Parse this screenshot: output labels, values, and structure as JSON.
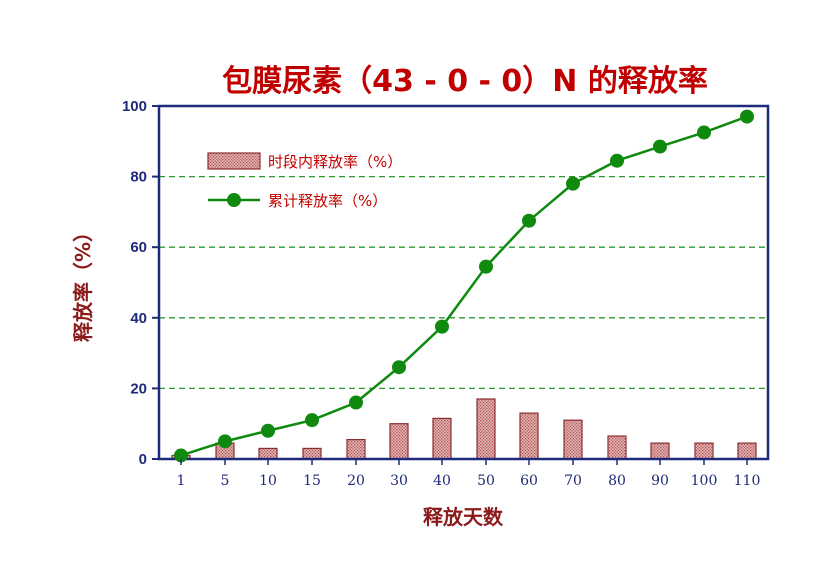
{
  "chart_data": {
    "type": "bar",
    "title": "包膜尿素（43 - 0 - 0）N 的释放率",
    "xlabel": "释放天数",
    "ylabel": "释放率（%）",
    "ylim": [
      0,
      100
    ],
    "yticks": [
      0,
      20,
      40,
      60,
      80,
      100
    ],
    "grid": "horizontal dashed green at 20, 40, 60, 80",
    "legend_position": "top-left",
    "categories": [
      "1",
      "5",
      "10",
      "15",
      "20",
      "30",
      "40",
      "50",
      "60",
      "70",
      "80",
      "90",
      "100",
      "110"
    ],
    "series": [
      {
        "name": "时段内释放率（%）",
        "type": "bar",
        "color": "#b85c5c",
        "values": [
          1,
          4.5,
          3,
          3,
          5.5,
          10,
          11.5,
          17,
          13,
          11,
          6.5,
          4.5,
          4.5,
          4.5
        ]
      },
      {
        "name": "累计释放率（%）",
        "type": "line",
        "color": "#0f8a0f",
        "values": [
          1,
          5,
          8,
          11,
          16,
          26,
          37.5,
          54.5,
          67.5,
          78,
          84.5,
          88.5,
          92.5,
          97
        ]
      }
    ]
  }
}
